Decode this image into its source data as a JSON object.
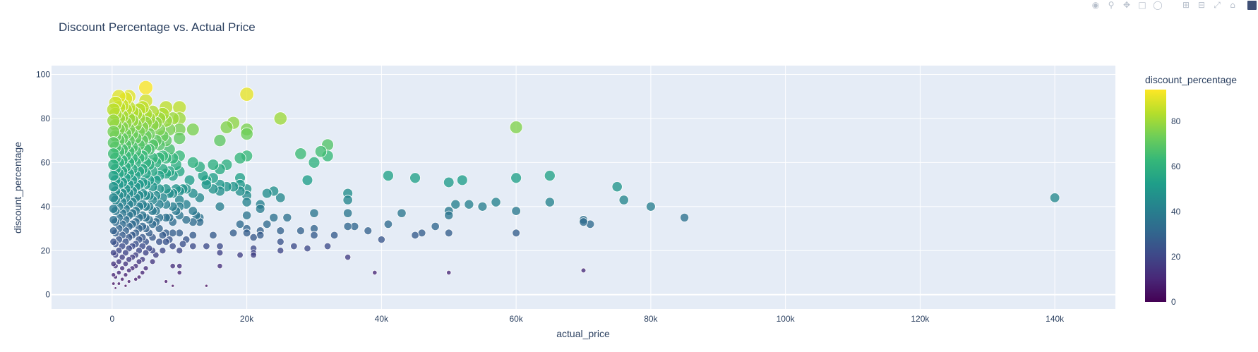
{
  "modebar": {
    "icons": [
      "camera-icon",
      "zoom-icon",
      "pan-icon",
      "box-select-icon",
      "lasso-icon",
      "zoom-in-icon",
      "zoom-out-icon",
      "autoscale-icon",
      "home-icon",
      "plotly-logo-icon"
    ]
  },
  "colors": {
    "plot_bg": "#e5ecf6",
    "grid": "#ffffff",
    "text": "#2a3f5f",
    "marker_line": "#ffffff",
    "viridis": [
      "#440154",
      "#482878",
      "#3e4989",
      "#31688e",
      "#26828e",
      "#1f9e89",
      "#35b779",
      "#6ece58",
      "#b5de2b",
      "#fde725"
    ]
  },
  "chart_data": {
    "type": "scatter",
    "title": "Discount Percentage vs. Actual Price",
    "xlabel": "actual_price",
    "ylabel": "discount_percentage",
    "xlim": [
      -9000,
      149000
    ],
    "ylim": [
      -6.5,
      104
    ],
    "x_ticks": [
      0,
      20000,
      40000,
      60000,
      80000,
      100000,
      120000,
      140000
    ],
    "x_tick_labels": [
      "0",
      "20k",
      "40k",
      "60k",
      "80k",
      "100k",
      "120k",
      "140k"
    ],
    "y_ticks": [
      0,
      20,
      40,
      60,
      80,
      100
    ],
    "y_tick_labels": [
      "0",
      "20",
      "40",
      "60",
      "80",
      "100"
    ],
    "grid": true,
    "legend": "none",
    "size_by": "discount_percentage",
    "color_by": "discount_percentage",
    "colorbar": {
      "title": "discount_percentage",
      "range": [
        0,
        94
      ],
      "ticks": [
        0,
        20,
        40,
        60,
        80
      ],
      "tick_labels": [
        "0",
        "20",
        "40",
        "60",
        "80"
      ],
      "colorscale": "viridis"
    },
    "points": [
      [
        140000,
        44
      ],
      [
        85000,
        35
      ],
      [
        80000,
        40
      ],
      [
        76000,
        43
      ],
      [
        75000,
        49
      ],
      [
        71000,
        32
      ],
      [
        70000,
        34
      ],
      [
        70000,
        33
      ],
      [
        70000,
        11
      ],
      [
        65000,
        54
      ],
      [
        65000,
        42
      ],
      [
        60000,
        76
      ],
      [
        60000,
        53
      ],
      [
        60000,
        38
      ],
      [
        60000,
        28
      ],
      [
        57000,
        42
      ],
      [
        55000,
        40
      ],
      [
        53000,
        41
      ],
      [
        52000,
        52
      ],
      [
        51000,
        41
      ],
      [
        50000,
        51
      ],
      [
        50000,
        38
      ],
      [
        50000,
        36
      ],
      [
        50000,
        28
      ],
      [
        50000,
        10
      ],
      [
        48000,
        31
      ],
      [
        46000,
        28
      ],
      [
        45000,
        53
      ],
      [
        45000,
        27
      ],
      [
        43000,
        37
      ],
      [
        41000,
        54
      ],
      [
        41000,
        32
      ],
      [
        40000,
        25
      ],
      [
        39000,
        10
      ],
      [
        38000,
        29
      ],
      [
        36000,
        31
      ],
      [
        35000,
        46
      ],
      [
        35000,
        43
      ],
      [
        35000,
        37
      ],
      [
        35000,
        31
      ],
      [
        35000,
        17
      ],
      [
        33000,
        27
      ],
      [
        32000,
        68
      ],
      [
        32000,
        63
      ],
      [
        32000,
        22
      ],
      [
        31000,
        65
      ],
      [
        30000,
        60
      ],
      [
        30000,
        37
      ],
      [
        30000,
        30
      ],
      [
        30000,
        27
      ],
      [
        29000,
        52
      ],
      [
        29000,
        21
      ],
      [
        28000,
        64
      ],
      [
        28000,
        29
      ],
      [
        27000,
        22
      ],
      [
        26000,
        35
      ],
      [
        25000,
        80
      ],
      [
        25000,
        44
      ],
      [
        25000,
        29
      ],
      [
        25000,
        24
      ],
      [
        25000,
        20
      ],
      [
        24000,
        47
      ],
      [
        24000,
        35
      ],
      [
        23000,
        46
      ],
      [
        23000,
        32
      ],
      [
        22000,
        41
      ],
      [
        22000,
        39
      ],
      [
        22000,
        29
      ],
      [
        22000,
        27
      ],
      [
        21000,
        26
      ],
      [
        21000,
        21
      ],
      [
        21000,
        19
      ],
      [
        21000,
        18
      ],
      [
        20000,
        91
      ],
      [
        20000,
        75
      ],
      [
        20000,
        73
      ],
      [
        20000,
        63
      ],
      [
        20000,
        48
      ],
      [
        20000,
        45
      ],
      [
        20000,
        42
      ],
      [
        20000,
        36
      ],
      [
        20000,
        30
      ],
      [
        20000,
        28
      ],
      [
        19000,
        62
      ],
      [
        19000,
        53
      ],
      [
        19000,
        50
      ],
      [
        19000,
        47
      ],
      [
        19000,
        32
      ],
      [
        19000,
        18
      ],
      [
        18000,
        78
      ],
      [
        18000,
        49
      ],
      [
        18000,
        28
      ],
      [
        17000,
        76
      ],
      [
        17000,
        59
      ],
      [
        17000,
        49
      ],
      [
        16000,
        70
      ],
      [
        16000,
        57
      ],
      [
        16000,
        50
      ],
      [
        16000,
        47
      ],
      [
        16000,
        40
      ],
      [
        16000,
        22
      ],
      [
        16000,
        19
      ],
      [
        16000,
        13
      ],
      [
        15000,
        59
      ],
      [
        15000,
        53
      ],
      [
        15000,
        48
      ],
      [
        15000,
        27
      ],
      [
        14000,
        52
      ],
      [
        14000,
        50
      ],
      [
        14000,
        22
      ],
      [
        14000,
        4
      ],
      [
        13500,
        54
      ],
      [
        13000,
        58
      ],
      [
        13000,
        44
      ],
      [
        13000,
        35
      ],
      [
        13000,
        33
      ],
      [
        12500,
        36
      ],
      [
        12000,
        75
      ],
      [
        12000,
        60
      ],
      [
        12000,
        46
      ],
      [
        12000,
        38
      ],
      [
        12000,
        33
      ],
      [
        12000,
        27
      ],
      [
        12000,
        22
      ],
      [
        11500,
        52
      ],
      [
        11000,
        48
      ],
      [
        11000,
        41
      ],
      [
        11000,
        34
      ],
      [
        11000,
        25
      ],
      [
        10500,
        48
      ],
      [
        10500,
        23
      ],
      [
        10000,
        85
      ],
      [
        10000,
        80
      ],
      [
        10000,
        75
      ],
      [
        10000,
        71
      ],
      [
        10000,
        63
      ],
      [
        10000,
        56
      ],
      [
        10000,
        47
      ],
      [
        10000,
        43
      ],
      [
        10000,
        40
      ],
      [
        10000,
        36
      ],
      [
        10000,
        28
      ],
      [
        10000,
        20
      ],
      [
        10000,
        13
      ],
      [
        10000,
        10
      ],
      [
        9500,
        59
      ],
      [
        9500,
        48
      ],
      [
        9500,
        38
      ],
      [
        9000,
        80
      ],
      [
        9000,
        62
      ],
      [
        9000,
        54
      ],
      [
        9000,
        46
      ],
      [
        9000,
        40
      ],
      [
        9000,
        33
      ],
      [
        9000,
        28
      ],
      [
        9000,
        22
      ],
      [
        9000,
        13
      ],
      [
        9000,
        4
      ],
      [
        8500,
        75
      ],
      [
        8500,
        66
      ],
      [
        8500,
        56
      ],
      [
        8500,
        46
      ],
      [
        8500,
        35
      ],
      [
        8500,
        25
      ],
      [
        8000,
        85
      ],
      [
        8000,
        79
      ],
      [
        8000,
        70
      ],
      [
        8000,
        62
      ],
      [
        8000,
        55
      ],
      [
        8000,
        48
      ],
      [
        8000,
        41
      ],
      [
        8000,
        35
      ],
      [
        8000,
        28
      ],
      [
        8000,
        24
      ],
      [
        8000,
        6
      ],
      [
        7500,
        82
      ],
      [
        7500,
        72
      ],
      [
        7500,
        63
      ],
      [
        7500,
        57
      ],
      [
        7500,
        44
      ],
      [
        7500,
        27
      ],
      [
        7500,
        20
      ],
      [
        7000,
        80
      ],
      [
        7000,
        75
      ],
      [
        7000,
        68
      ],
      [
        7000,
        62
      ],
      [
        7000,
        54
      ],
      [
        7000,
        48
      ],
      [
        7000,
        41
      ],
      [
        7000,
        35
      ],
      [
        7000,
        30
      ],
      [
        7000,
        24
      ],
      [
        6500,
        78
      ],
      [
        6500,
        70
      ],
      [
        6500,
        60
      ],
      [
        6500,
        52
      ],
      [
        6500,
        45
      ],
      [
        6500,
        38
      ],
      [
        6500,
        33
      ],
      [
        6500,
        18
      ],
      [
        6000,
        83
      ],
      [
        6000,
        77
      ],
      [
        6000,
        68
      ],
      [
        6000,
        62
      ],
      [
        6000,
        56
      ],
      [
        6000,
        49
      ],
      [
        6000,
        43
      ],
      [
        6000,
        38
      ],
      [
        6000,
        32
      ],
      [
        6000,
        26
      ],
      [
        6000,
        20
      ],
      [
        6000,
        15
      ],
      [
        5500,
        80
      ],
      [
        5500,
        73
      ],
      [
        5500,
        66
      ],
      [
        5500,
        59
      ],
      [
        5500,
        52
      ],
      [
        5500,
        45
      ],
      [
        5500,
        40
      ],
      [
        5500,
        34
      ],
      [
        5500,
        28
      ],
      [
        5500,
        21
      ],
      [
        5000,
        94
      ],
      [
        5000,
        88
      ],
      [
        5000,
        82
      ],
      [
        5000,
        78
      ],
      [
        5000,
        72
      ],
      [
        5000,
        66
      ],
      [
        5000,
        60
      ],
      [
        5000,
        55
      ],
      [
        5000,
        50
      ],
      [
        5000,
        45
      ],
      [
        5000,
        40
      ],
      [
        5000,
        35
      ],
      [
        5000,
        30
      ],
      [
        5000,
        24
      ],
      [
        5000,
        19
      ],
      [
        5000,
        12
      ],
      [
        4500,
        85
      ],
      [
        4500,
        76
      ],
      [
        4500,
        70
      ],
      [
        4500,
        63
      ],
      [
        4500,
        57
      ],
      [
        4500,
        51
      ],
      [
        4500,
        46
      ],
      [
        4500,
        41
      ],
      [
        4500,
        36
      ],
      [
        4500,
        31
      ],
      [
        4500,
        26
      ],
      [
        4500,
        22
      ],
      [
        4500,
        16
      ],
      [
        4500,
        10
      ],
      [
        4000,
        84
      ],
      [
        4000,
        80
      ],
      [
        4000,
        74
      ],
      [
        4000,
        68
      ],
      [
        4000,
        62
      ],
      [
        4000,
        56
      ],
      [
        4000,
        50
      ],
      [
        4000,
        45
      ],
      [
        4000,
        40
      ],
      [
        4000,
        35
      ],
      [
        4000,
        30
      ],
      [
        4000,
        25
      ],
      [
        4000,
        20
      ],
      [
        4000,
        15
      ],
      [
        4000,
        8
      ],
      [
        3500,
        82
      ],
      [
        3500,
        77
      ],
      [
        3500,
        71
      ],
      [
        3500,
        65
      ],
      [
        3500,
        60
      ],
      [
        3500,
        54
      ],
      [
        3500,
        49
      ],
      [
        3500,
        44
      ],
      [
        3500,
        38
      ],
      [
        3500,
        33
      ],
      [
        3500,
        28
      ],
      [
        3500,
        23
      ],
      [
        3500,
        18
      ],
      [
        3500,
        13
      ],
      [
        3500,
        7
      ],
      [
        3000,
        83
      ],
      [
        3000,
        79
      ],
      [
        3000,
        73
      ],
      [
        3000,
        67
      ],
      [
        3000,
        62
      ],
      [
        3000,
        57
      ],
      [
        3000,
        52
      ],
      [
        3000,
        47
      ],
      [
        3000,
        42
      ],
      [
        3000,
        37
      ],
      [
        3000,
        32
      ],
      [
        3000,
        27
      ],
      [
        3000,
        22
      ],
      [
        3000,
        17
      ],
      [
        3000,
        12
      ],
      [
        2500,
        90
      ],
      [
        2500,
        85
      ],
      [
        2500,
        80
      ],
      [
        2500,
        75
      ],
      [
        2500,
        70
      ],
      [
        2500,
        65
      ],
      [
        2500,
        60
      ],
      [
        2500,
        55
      ],
      [
        2500,
        50
      ],
      [
        2500,
        46
      ],
      [
        2500,
        41
      ],
      [
        2500,
        36
      ],
      [
        2500,
        31
      ],
      [
        2500,
        26
      ],
      [
        2500,
        21
      ],
      [
        2500,
        16
      ],
      [
        2500,
        11
      ],
      [
        2500,
        6
      ],
      [
        2000,
        89
      ],
      [
        2000,
        84
      ],
      [
        2000,
        78
      ],
      [
        2000,
        73
      ],
      [
        2000,
        68
      ],
      [
        2000,
        63
      ],
      [
        2000,
        58
      ],
      [
        2000,
        53
      ],
      [
        2000,
        48
      ],
      [
        2000,
        44
      ],
      [
        2000,
        39
      ],
      [
        2000,
        34
      ],
      [
        2000,
        29
      ],
      [
        2000,
        24
      ],
      [
        2000,
        19
      ],
      [
        2000,
        14
      ],
      [
        2000,
        9
      ],
      [
        2000,
        4
      ],
      [
        1500,
        86
      ],
      [
        1500,
        81
      ],
      [
        1500,
        76
      ],
      [
        1500,
        71
      ],
      [
        1500,
        66
      ],
      [
        1500,
        61
      ],
      [
        1500,
        56
      ],
      [
        1500,
        51
      ],
      [
        1500,
        46
      ],
      [
        1500,
        42
      ],
      [
        1500,
        37
      ],
      [
        1500,
        32
      ],
      [
        1500,
        27
      ],
      [
        1500,
        22
      ],
      [
        1500,
        17
      ],
      [
        1500,
        12
      ],
      [
        1500,
        7
      ],
      [
        1000,
        90
      ],
      [
        1000,
        85
      ],
      [
        1000,
        80
      ],
      [
        1000,
        75
      ],
      [
        1000,
        70
      ],
      [
        1000,
        65
      ],
      [
        1000,
        60
      ],
      [
        1000,
        55
      ],
      [
        1000,
        50
      ],
      [
        1000,
        45
      ],
      [
        1000,
        40
      ],
      [
        1000,
        35
      ],
      [
        1000,
        30
      ],
      [
        1000,
        25
      ],
      [
        1000,
        20
      ],
      [
        1000,
        15
      ],
      [
        1000,
        10
      ],
      [
        1000,
        5
      ],
      [
        500,
        87
      ],
      [
        500,
        82
      ],
      [
        500,
        77
      ],
      [
        500,
        72
      ],
      [
        500,
        67
      ],
      [
        500,
        62
      ],
      [
        500,
        57
      ],
      [
        500,
        52
      ],
      [
        500,
        47
      ],
      [
        500,
        43
      ],
      [
        500,
        38
      ],
      [
        500,
        33
      ],
      [
        500,
        28
      ],
      [
        500,
        23
      ],
      [
        500,
        18
      ],
      [
        500,
        13
      ],
      [
        500,
        8
      ],
      [
        500,
        3
      ],
      [
        200,
        84
      ],
      [
        200,
        79
      ],
      [
        200,
        74
      ],
      [
        200,
        69
      ],
      [
        200,
        64
      ],
      [
        200,
        59
      ],
      [
        200,
        54
      ],
      [
        200,
        49
      ],
      [
        200,
        44
      ],
      [
        200,
        39
      ],
      [
        200,
        34
      ],
      [
        200,
        29
      ],
      [
        200,
        24
      ],
      [
        200,
        19
      ],
      [
        200,
        14
      ],
      [
        200,
        9
      ],
      [
        200,
        5
      ]
    ]
  }
}
